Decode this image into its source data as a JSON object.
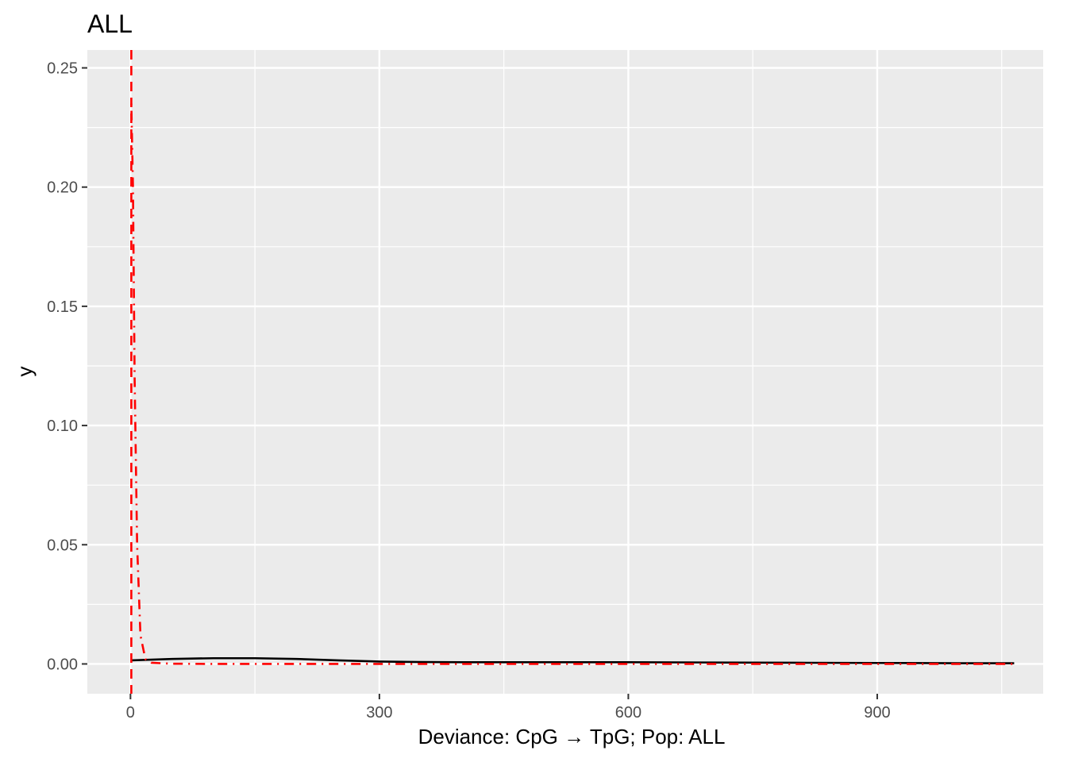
{
  "chart_data": {
    "type": "line",
    "title": "ALL",
    "xlabel": "Deviance: CpG → TpG; Pop: ALL",
    "ylabel": "y",
    "xlim": [
      -52,
      1100
    ],
    "ylim": [
      -0.0125,
      0.2575
    ],
    "x_ticks": [
      0,
      300,
      600,
      900
    ],
    "x_tick_labels": [
      "0",
      "300",
      "600",
      "900"
    ],
    "y_ticks": [
      0.0,
      0.05,
      0.1,
      0.15,
      0.2,
      0.25
    ],
    "y_tick_labels": [
      "0.00",
      "0.05",
      "0.10",
      "0.15",
      "0.20",
      "0.25"
    ],
    "grid": true,
    "background": "#ebebeb",
    "grid_color": "#ffffff",
    "series": [
      {
        "style": "solid",
        "color": "#000000",
        "x": [
          1,
          50,
          100,
          150,
          200,
          250,
          300,
          350,
          400,
          500,
          600,
          700,
          800,
          900,
          1000,
          1065
        ],
        "y": [
          0.0015,
          0.0021,
          0.0024,
          0.0024,
          0.0021,
          0.0015,
          0.001,
          0.0008,
          0.0007,
          0.0007,
          0.0007,
          0.0006,
          0.0005,
          0.0004,
          0.0003,
          0.0003
        ]
      },
      {
        "style": "dotdash",
        "color": "#ff0000",
        "x": [
          1,
          3,
          5,
          8,
          12,
          18,
          25,
          50,
          100,
          300,
          600,
          900,
          1065
        ],
        "y": [
          0.235,
          0.2,
          0.12,
          0.05,
          0.012,
          0.002,
          0.0005,
          0.0001,
          0.0,
          0.0,
          0.0,
          0.0,
          0.0
        ]
      }
    ],
    "vlines": [
      {
        "x": 1,
        "style": "dashed",
        "color": "#ff0000"
      }
    ]
  }
}
